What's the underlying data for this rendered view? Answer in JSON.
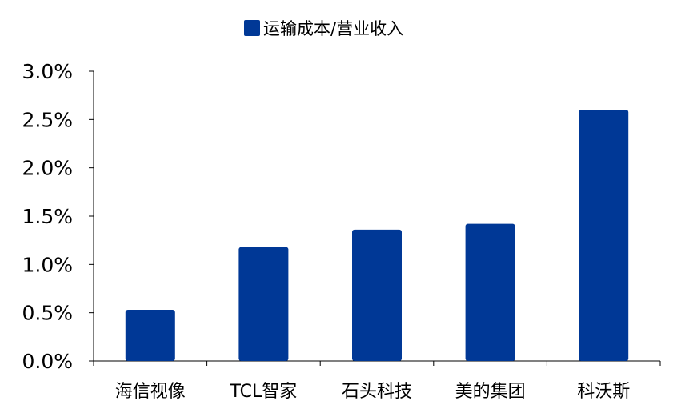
{
  "chart_data": {
    "type": "bar",
    "categories": [
      "海信视像",
      "TCL智家",
      "石头科技",
      "美的集团",
      "科沃斯"
    ],
    "series": [
      {
        "name": "运输成本/营业收入",
        "values": [
          0.53,
          1.18,
          1.36,
          1.42,
          2.6
        ],
        "color": "#003896"
      }
    ],
    "ylim": [
      0,
      3.0
    ],
    "y_ticks": [
      0,
      0.5,
      1.0,
      1.5,
      2.0,
      2.5,
      3.0
    ],
    "y_tick_labels": [
      "0.0%",
      "0.5%",
      "1.0%",
      "1.5%",
      "2.0%",
      "2.5%",
      "3.0%"
    ],
    "grid": false,
    "legend_position": "top-center",
    "title": "",
    "xlabel": "",
    "ylabel": ""
  }
}
